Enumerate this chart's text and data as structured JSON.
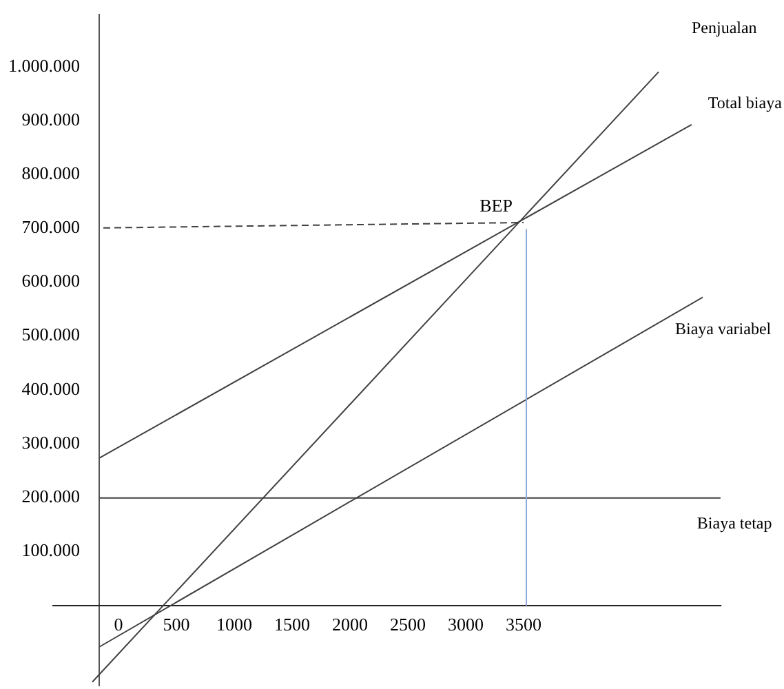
{
  "chart_data": {
    "type": "line",
    "xlim": [
      -230,
      5210
    ],
    "ylim": [
      -150000,
      1100000
    ],
    "xticks": [
      0,
      500,
      1000,
      1500,
      2000,
      2500,
      3000,
      3500
    ],
    "yticks": [
      {
        "value": 100000,
        "label": "100.000"
      },
      {
        "value": 200000,
        "label": "200.000"
      },
      {
        "value": 300000,
        "label": "300.000"
      },
      {
        "value": 400000,
        "label": "400.000"
      },
      {
        "value": 500000,
        "label": "500.000"
      },
      {
        "value": 600000,
        "label": "600.000"
      },
      {
        "value": 700000,
        "label": "700.000"
      },
      {
        "value": 800000,
        "label": "800.000"
      },
      {
        "value": 900000,
        "label": "900.000"
      },
      {
        "value": 1000000,
        "label": "1.000.000"
      }
    ],
    "grid": false,
    "legend": false,
    "marker": "none",
    "series": [
      {
        "name": "Penjualan",
        "color": "#404040",
        "x": [
          -226,
          4667
        ],
        "values": [
          -142000,
          992000
        ]
      },
      {
        "name": "Total biaya",
        "color": "#404040",
        "x": [
          -167,
          4952
        ],
        "values": [
          274000,
          894000
        ]
      },
      {
        "name": "Biaya variabel",
        "color": "#404040",
        "x": [
          -167,
          5048
        ],
        "values": [
          -77000,
          573000
        ]
      },
      {
        "name": "Biaya tetap",
        "color": "#404040",
        "x": [
          -167,
          5202
        ],
        "values": [
          200000,
          200000
        ]
      },
      {
        "color": "#404040",
        "line_style": "dashed",
        "x": [
          -131,
          3500
        ],
        "values": [
          702000,
          712000
        ]
      },
      {
        "color": "#8eaadb",
        "x": [
          3524,
          3524
        ],
        "values": [
          700000,
          0
        ]
      }
    ],
    "annotations": [
      {
        "text": "BEP",
        "x": 3500,
        "y": 712000
      }
    ]
  }
}
